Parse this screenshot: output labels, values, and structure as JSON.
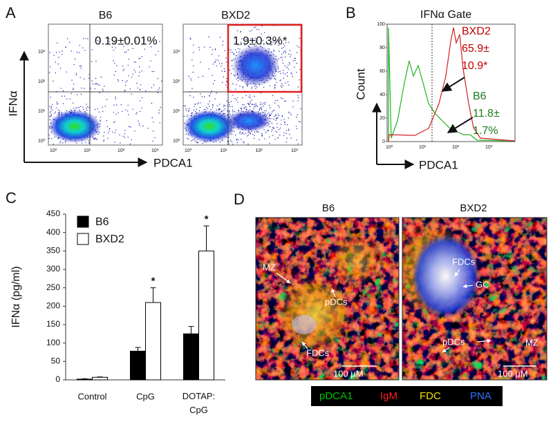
{
  "panel_a": {
    "label": "A",
    "plots": [
      {
        "title": "B6",
        "gate": "0.19±0.01%"
      },
      {
        "title": "BXD2",
        "gate": "1.9±0.3%*"
      }
    ],
    "x_ticks": [
      "10⁰",
      "10¹",
      "10²",
      "10³"
    ],
    "y_ticks": [
      "10³",
      "10²",
      "10¹",
      "10⁰"
    ],
    "y_label": "IFNα",
    "x_label": "PDCA1"
  },
  "panel_b": {
    "label": "B",
    "title": "IFNα Gate",
    "y_label": "Count",
    "x_label": "PDCA1",
    "ylim": [
      0,
      100
    ],
    "y_ticks": [
      0,
      20,
      40,
      60,
      80,
      100
    ],
    "x_ticks": [
      "10⁰",
      "10¹",
      "10²",
      "10³"
    ],
    "annotations": [
      {
        "lines": [
          "BXD2",
          "65.9±",
          "10.9*"
        ],
        "color": "#c00000"
      },
      {
        "lines": [
          "B6",
          "11.8±",
          "1.7%"
        ],
        "color": "#1a7a1a"
      }
    ]
  },
  "chart_data": {
    "type": "bar",
    "label": "C",
    "y_label": "IFNα (pg/ml)",
    "categories": [
      "Control",
      "CpG",
      "DOTAP: CpG"
    ],
    "series": [
      {
        "name": "B6",
        "color": "#000000",
        "values": [
          2,
          78,
          125
        ],
        "errors": [
          1,
          10,
          20
        ],
        "significance": [
          null,
          null,
          null
        ]
      },
      {
        "name": "BXD2",
        "color": "#ffffff",
        "values": [
          7,
          210,
          350
        ],
        "errors": [
          1,
          40,
          68
        ],
        "significance": [
          null,
          "*",
          "*"
        ]
      }
    ],
    "ylim": [
      0,
      450
    ],
    "yticks": [
      0,
      50,
      100,
      150,
      200,
      250,
      300,
      350,
      400,
      450
    ]
  },
  "panel_d": {
    "label": "D",
    "images": [
      {
        "title": "B6",
        "labels": [
          "MZ",
          "pDCs",
          "FDCs"
        ],
        "scale": "100 μM"
      },
      {
        "title": "BXD2",
        "labels": [
          "FDCs",
          "GC",
          "pDCs",
          "MZ"
        ],
        "scale": "100 μM"
      }
    ],
    "legend": [
      {
        "text": "pDCA1",
        "color": "#00c000"
      },
      {
        "text": "IgM",
        "color": "#ff2020"
      },
      {
        "text": "FDC",
        "color": "#f0e000"
      },
      {
        "text": "PNA",
        "color": "#3070ff"
      }
    ]
  }
}
